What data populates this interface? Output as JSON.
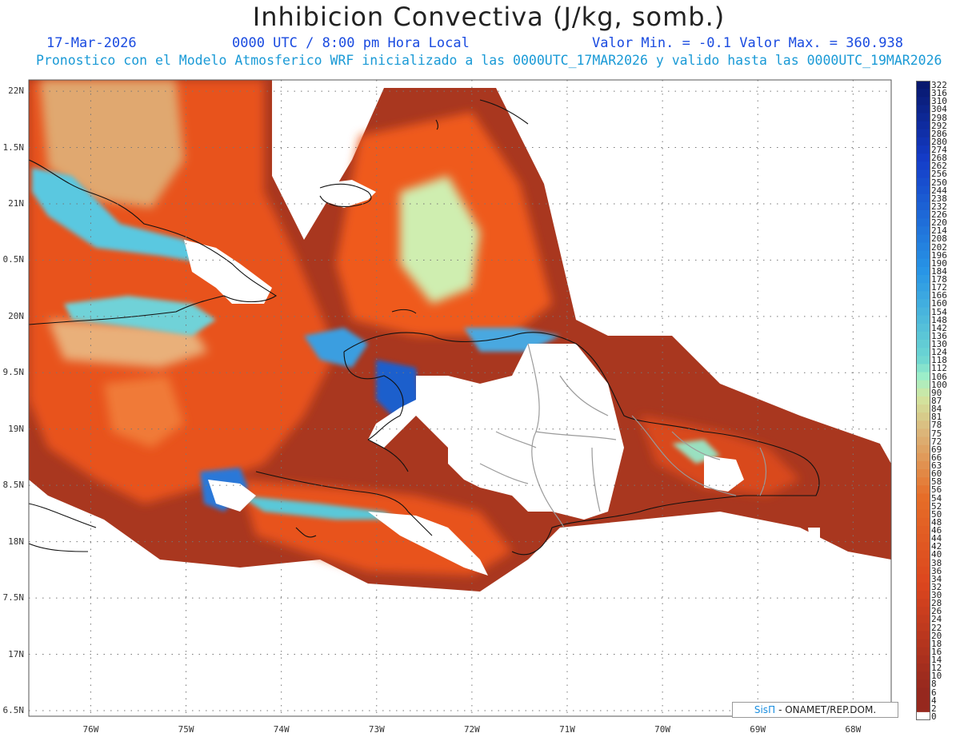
{
  "header": {
    "title": "Inhibicion Convectiva (J/kg, somb.)",
    "date": "17-Mar-2026",
    "time": "0000 UTC / 8:00 pm Hora Local",
    "minmax": "Valor Min. = -0.1  Valor Max. = 360.938",
    "forecast": "Pronostico con el Modelo Atmosferico WRF inicializado a las 0000UTC_17MAR2026 y valido hasta las  0000UTC_19MAR2026"
  },
  "map": {
    "lat_labels": [
      "22N",
      "1.5N",
      "21N",
      "0.5N",
      "20N",
      "9.5N",
      "19N",
      "8.5N",
      "18N",
      "7.5N",
      "17N",
      "6.5N"
    ],
    "lon_labels": [
      "76W",
      "75W",
      "74W",
      "73W",
      "72W",
      "71W",
      "70W",
      "69W",
      "68W"
    ],
    "lat_values": [
      22,
      21.5,
      21,
      20.5,
      20,
      19.5,
      19,
      18.5,
      18,
      17.5,
      17,
      16.5
    ],
    "lon_values": [
      -76,
      -75,
      -74,
      -73,
      -72,
      -71,
      -70,
      -69,
      -68
    ],
    "extent": {
      "lon_min": -76.65,
      "lon_max": -67.6,
      "lat_min": 16.45,
      "lat_max": 22.1
    },
    "gridlines": true
  },
  "colorbar": {
    "labels": [
      "322",
      "316",
      "310",
      "304",
      "298",
      "292",
      "286",
      "280",
      "274",
      "268",
      "262",
      "256",
      "250",
      "244",
      "238",
      "232",
      "226",
      "220",
      "214",
      "208",
      "202",
      "196",
      "190",
      "184",
      "178",
      "172",
      "166",
      "160",
      "154",
      "148",
      "142",
      "136",
      "130",
      "124",
      "118",
      "112",
      "106",
      "100",
      "90",
      "87",
      "84",
      "81",
      "78",
      "75",
      "72",
      "69",
      "66",
      "63",
      "60",
      "58",
      "56",
      "54",
      "52",
      "50",
      "48",
      "46",
      "44",
      "42",
      "40",
      "38",
      "36",
      "34",
      "32",
      "30",
      "28",
      "26",
      "24",
      "22",
      "20",
      "18",
      "16",
      "14",
      "12",
      "10",
      "8",
      "6",
      "4",
      "2",
      "0"
    ]
  },
  "credit": {
    "brand": "SisΠ",
    "text": "- ONAMET/REP.DOM."
  }
}
